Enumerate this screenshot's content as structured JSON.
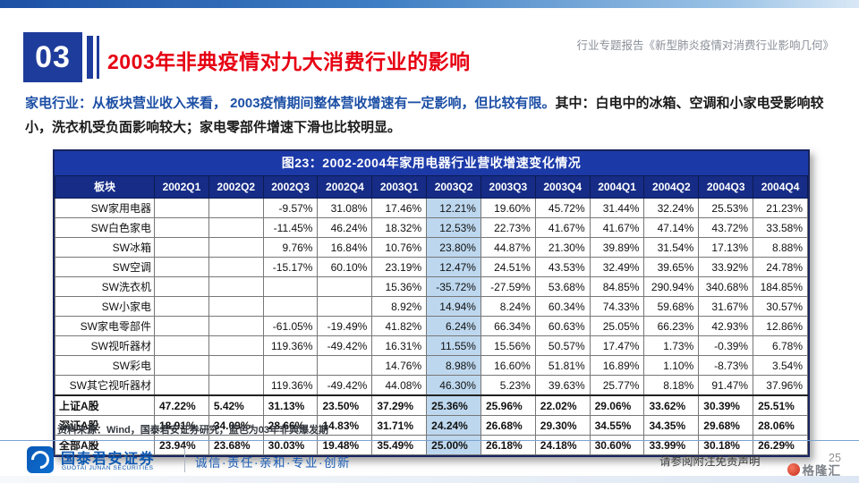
{
  "page": {
    "section_number": "03",
    "title": "2003年非典疫情对九大消费行业的影响",
    "header_right": "行业专题报告《新型肺炎疫情对消费行业影响几何》",
    "body": {
      "lead": "家电行业：从板块营业收入来看， 2003疫情期间整体营收增速有一定影响，但比较有限。",
      "rest": "其中：白电中的冰箱、空调和小家电受影响较小，洗衣机受负面影响较大；家电零部件增速下滑也比较明显。"
    },
    "source_note": "资料来源：Wind，国泰君安证券研究，蓝色为03年非典爆发期",
    "footer": {
      "brand": "国泰君安证券",
      "brand_en": "GUOTAI JUNAN SECURITIES",
      "slogan": "诚信·责任·亲和·专业·创新",
      "disclaimer": "请参阅附注免责声明",
      "page_number": "25",
      "watermark": "格隆汇"
    }
  },
  "colors": {
    "accent_blue": "#1c39a8",
    "header_navy": "#162c86",
    "title_red": "#e60012",
    "highlight": "#BDD7EE"
  },
  "chart_data": {
    "type": "table",
    "title": "图23：2002-2004年家用电器行业营收增速变化情况",
    "columns": [
      "板块",
      "2002Q1",
      "2002Q2",
      "2002Q3",
      "2002Q4",
      "2003Q1",
      "2003Q2",
      "2003Q3",
      "2003Q4",
      "2004Q1",
      "2004Q2",
      "2004Q3",
      "2004Q4"
    ],
    "highlight_column": "2003Q2",
    "highlight_col_index": 6,
    "highlight_color": "#BDD7EE",
    "note": "蓝色为03年非典爆发期",
    "rows": [
      {
        "cells": [
          "SW家用电器",
          "",
          "",
          "-9.57%",
          "31.08%",
          "17.46%",
          "12.21%",
          "19.60%",
          "45.72%",
          "31.44%",
          "32.24%",
          "25.53%",
          "21.23%"
        ],
        "bold": false
      },
      {
        "cells": [
          "SW白色家电",
          "",
          "",
          "-11.45%",
          "46.24%",
          "18.32%",
          "12.53%",
          "22.73%",
          "41.67%",
          "41.67%",
          "47.14%",
          "43.72%",
          "33.58%"
        ],
        "bold": false
      },
      {
        "cells": [
          "SW冰箱",
          "",
          "",
          "9.76%",
          "16.84%",
          "10.76%",
          "23.80%",
          "44.87%",
          "21.30%",
          "39.89%",
          "31.54%",
          "17.13%",
          "8.88%"
        ],
        "bold": false
      },
      {
        "cells": [
          "SW空调",
          "",
          "",
          "-15.17%",
          "60.10%",
          "23.19%",
          "12.47%",
          "24.51%",
          "43.53%",
          "32.49%",
          "39.65%",
          "33.92%",
          "24.78%"
        ],
        "bold": false
      },
      {
        "cells": [
          "SW洗衣机",
          "",
          "",
          "",
          "",
          "15.36%",
          "-35.72%",
          "-27.59%",
          "53.68%",
          "84.85%",
          "290.94%",
          "340.68%",
          "184.85%"
        ],
        "bold": false
      },
      {
        "cells": [
          "SW小家电",
          "",
          "",
          "",
          "",
          "8.92%",
          "14.94%",
          "8.24%",
          "60.34%",
          "74.33%",
          "59.68%",
          "31.67%",
          "30.57%"
        ],
        "bold": false
      },
      {
        "cells": [
          "SW家电零部件",
          "",
          "",
          "-61.05%",
          "-19.49%",
          "41.82%",
          "6.24%",
          "66.34%",
          "60.63%",
          "25.05%",
          "66.23%",
          "42.93%",
          "12.86%"
        ],
        "bold": false
      },
      {
        "cells": [
          "SW视听器材",
          "",
          "",
          "119.36%",
          "-49.42%",
          "16.31%",
          "11.55%",
          "15.56%",
          "50.57%",
          "17.47%",
          "1.73%",
          "-0.39%",
          "6.78%"
        ],
        "bold": false
      },
      {
        "cells": [
          "SW彩电",
          "",
          "",
          "",
          "",
          "14.76%",
          "8.98%",
          "16.60%",
          "51.81%",
          "16.89%",
          "1.10%",
          "-8.73%",
          "3.54%"
        ],
        "bold": false
      },
      {
        "cells": [
          "SW其它视听器材",
          "",
          "",
          "119.36%",
          "-49.42%",
          "44.08%",
          "46.30%",
          "5.23%",
          "39.63%",
          "25.77%",
          "8.18%",
          "91.47%",
          "37.96%"
        ],
        "bold": false
      },
      {
        "cells": [
          "上证A股",
          "47.22%",
          "5.42%",
          "31.13%",
          "23.50%",
          "37.29%",
          "25.36%",
          "25.96%",
          "22.02%",
          "29.06%",
          "33.62%",
          "30.39%",
          "25.51%"
        ],
        "bold": true,
        "first_bold": true
      },
      {
        "cells": [
          "深证A股",
          "18.91%",
          "34.09%",
          "28.66%",
          "14.83%",
          "31.71%",
          "24.24%",
          "26.68%",
          "29.30%",
          "34.55%",
          "34.35%",
          "29.68%",
          "28.06%"
        ],
        "bold": true
      },
      {
        "cells": [
          "全部A股",
          "23.94%",
          "23.68%",
          "30.03%",
          "19.48%",
          "35.49%",
          "25.00%",
          "26.18%",
          "24.18%",
          "30.60%",
          "33.99%",
          "30.18%",
          "26.29%"
        ],
        "bold": true
      }
    ]
  }
}
